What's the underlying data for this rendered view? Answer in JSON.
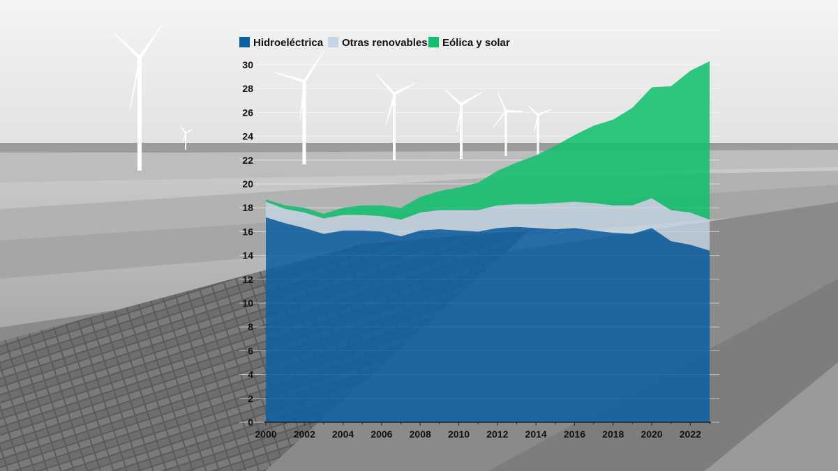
{
  "chart_data": {
    "type": "area",
    "stacked": true,
    "title": "",
    "xlabel": "",
    "ylabel": "",
    "x": [
      2000,
      2001,
      2002,
      2003,
      2004,
      2005,
      2006,
      2007,
      2008,
      2009,
      2010,
      2011,
      2012,
      2013,
      2014,
      2015,
      2016,
      2017,
      2018,
      2019,
      2020,
      2021,
      2022,
      2023
    ],
    "x_ticks": [
      "2000",
      "2002",
      "2004",
      "2006",
      "2008",
      "2010",
      "2012",
      "2014",
      "2016",
      "2018",
      "2020",
      "2022"
    ],
    "y_ticks": [
      "0",
      "2",
      "4",
      "6",
      "8",
      "10",
      "12",
      "14",
      "16",
      "18",
      "20",
      "22",
      "24",
      "26",
      "28",
      "30"
    ],
    "ylim": [
      0,
      30
    ],
    "xlim": [
      2000,
      2023
    ],
    "grid": true,
    "legend_position": "top-left",
    "series": [
      {
        "name": "Hidroeléctrica",
        "color": "#0d5fa3",
        "values": [
          17.2,
          16.7,
          16.3,
          15.8,
          16.1,
          16.1,
          16.0,
          15.6,
          16.1,
          16.2,
          16.1,
          16.0,
          16.3,
          16.4,
          16.3,
          16.2,
          16.3,
          16.1,
          15.9,
          15.8,
          16.3,
          15.2,
          14.9,
          14.4
        ]
      },
      {
        "name": "Otras renovables",
        "color": "#c4d6e6",
        "values": [
          1.3,
          1.2,
          1.3,
          1.3,
          1.3,
          1.3,
          1.3,
          1.4,
          1.5,
          1.6,
          1.7,
          1.8,
          1.9,
          1.9,
          2.0,
          2.2,
          2.2,
          2.3,
          2.3,
          2.4,
          2.5,
          2.6,
          2.7,
          2.6
        ]
      },
      {
        "name": "Eólica y solar",
        "color": "#0fbf6e",
        "values": [
          0.2,
          0.3,
          0.4,
          0.4,
          0.6,
          0.8,
          0.9,
          1.0,
          1.3,
          1.6,
          1.9,
          2.3,
          2.9,
          3.5,
          4.1,
          4.8,
          5.6,
          6.5,
          7.2,
          8.2,
          9.3,
          10.4,
          11.9,
          13.3
        ]
      }
    ]
  }
}
